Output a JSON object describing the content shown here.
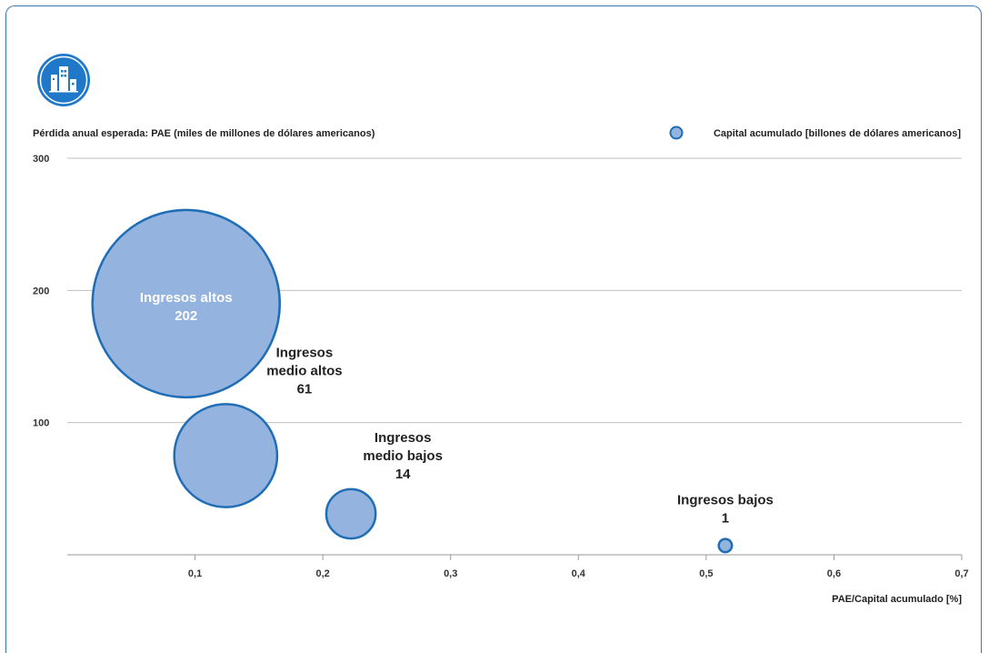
{
  "colors": {
    "bubble_fill": "#95b3df",
    "bubble_stroke": "#1f6eb5",
    "grid": "#bfbfbf",
    "icon_bg": "#1f78c8",
    "frame": "#3c78b4"
  },
  "icon": "city-buildings-icon",
  "chart_data": {
    "type": "scatter",
    "bubble": true,
    "title": "",
    "ylabel": "Pérdida anual esperada: PAE (miles de millones de dólares americanos)",
    "xlabel": "PAE/Capital acumulado [%]",
    "legend": {
      "label": "Capital acumulado [billones de dólares americanos]",
      "position": "top-right"
    },
    "xlim": [
      0,
      0.7
    ],
    "ylim": [
      0,
      300
    ],
    "x_ticks": [
      {
        "value": 0.1,
        "label": "0,1"
      },
      {
        "value": 0.2,
        "label": "0,2"
      },
      {
        "value": 0.3,
        "label": "0,3"
      },
      {
        "value": 0.4,
        "label": "0,4"
      },
      {
        "value": 0.5,
        "label": "0,5"
      },
      {
        "value": 0.6,
        "label": "0,6"
      },
      {
        "value": 0.7,
        "label": "0,7"
      }
    ],
    "y_ticks": [
      {
        "value": 100,
        "label": "100"
      },
      {
        "value": 200,
        "label": "200"
      },
      {
        "value": 300,
        "label": "300"
      }
    ],
    "grid": true,
    "points": [
      {
        "name": "Ingresos altos",
        "x": 0.093,
        "y": 190,
        "size": 202,
        "size_label": "202",
        "label_position": "inside"
      },
      {
        "name": "Ingresos medio altos",
        "x": 0.124,
        "y": 75,
        "size": 61,
        "size_label": "61",
        "label_position": "above-right"
      },
      {
        "name": "Ingresos medio bajos",
        "x": 0.222,
        "y": 31,
        "size": 14,
        "size_label": "14",
        "label_position": "above-right"
      },
      {
        "name": "Ingresos bajos",
        "x": 0.515,
        "y": 7,
        "size": 1,
        "size_label": "1",
        "label_position": "above"
      }
    ]
  }
}
